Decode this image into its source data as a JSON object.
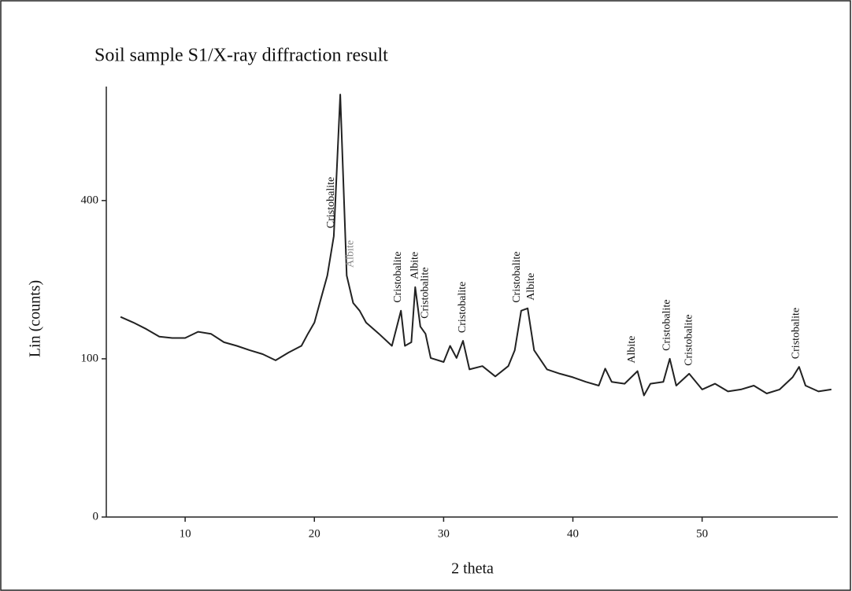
{
  "chart_data": {
    "type": "line",
    "title": "Soil sample S1/X-ray diffraction result",
    "xlabel": "2 theta",
    "ylabel": "Lin (counts)",
    "yscale": "sqrt",
    "color": "#222222",
    "xlim": [
      3.9,
      60.5
    ],
    "ylim": [
      0,
      740
    ],
    "xticks": [
      10,
      20,
      30,
      40,
      50
    ],
    "yticks": [
      0,
      100,
      400
    ],
    "x": [
      5,
      6,
      7,
      8,
      9,
      10,
      11,
      12,
      13,
      14,
      15,
      16,
      17,
      18,
      19,
      19.5,
      20,
      20.5,
      21,
      21.5,
      22,
      22.5,
      23,
      23.5,
      24,
      25,
      26,
      26.7,
      27,
      27.5,
      27.8,
      28.2,
      28.6,
      29,
      30,
      30.5,
      31,
      31.5,
      32,
      33,
      34,
      35,
      35.5,
      36,
      36.5,
      37,
      38,
      39,
      40,
      41,
      42,
      42.5,
      43,
      44,
      45,
      45.5,
      46,
      47,
      47.5,
      48,
      49,
      50,
      51,
      52,
      53,
      54,
      55,
      56,
      57,
      57.5,
      58,
      59,
      60
    ],
    "values": [
      160,
      151,
      141,
      130,
      128,
      128,
      137,
      134,
      122,
      117,
      111,
      106,
      98,
      108,
      117,
      134,
      151,
      190,
      233,
      315,
      713,
      233,
      183,
      170,
      151,
      134,
      117,
      170,
      117,
      122,
      211,
      145,
      134,
      101,
      96,
      117,
      101,
      124,
      87,
      91,
      79,
      91,
      111,
      170,
      174,
      111,
      87,
      82,
      78,
      73,
      69,
      88,
      73,
      71,
      85,
      59,
      71,
      73,
      100,
      69,
      82,
      65,
      71,
      63,
      65,
      69,
      61,
      65,
      78,
      90,
      69,
      63,
      65
    ],
    "annotations": [
      {
        "text": "Cristobalite",
        "x": 21.3,
        "color": "#111111"
      },
      {
        "text": "Albite",
        "x": 22.8,
        "color": "#888888"
      },
      {
        "text": "Cristobalite",
        "x": 26.5,
        "color": "#111111"
      },
      {
        "text": "Albite",
        "x": 27.8,
        "color": "#111111"
      },
      {
        "text": "Cristobalite",
        "x": 28.6,
        "color": "#111111"
      },
      {
        "text": "Cristobalite",
        "x": 31.5,
        "color": "#111111"
      },
      {
        "text": "Cristobalite",
        "x": 35.7,
        "color": "#111111"
      },
      {
        "text": "Albite",
        "x": 36.8,
        "color": "#111111"
      },
      {
        "text": "Albite",
        "x": 44.6,
        "color": "#111111"
      },
      {
        "text": "Cristobalite",
        "x": 47.3,
        "color": "#111111"
      },
      {
        "text": "Cristobalite",
        "x": 49,
        "color": "#111111"
      },
      {
        "text": "Cristobalite",
        "x": 57.3,
        "color": "#111111"
      }
    ]
  }
}
